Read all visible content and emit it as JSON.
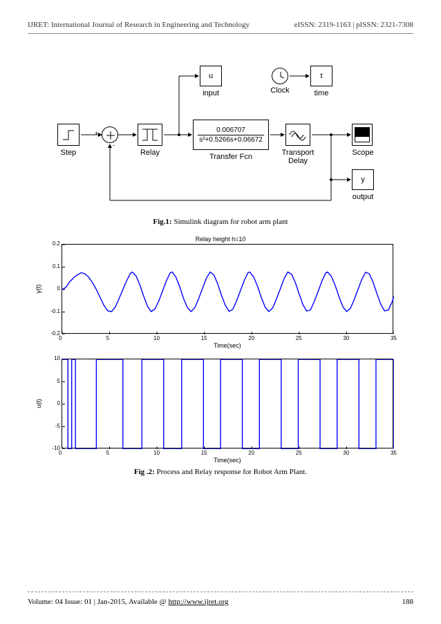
{
  "header": {
    "journal": "IJRET: International Journal of Research in Engineering and Technology",
    "issn": "eISSN: 2319-1163 | pISSN: 2321-7308"
  },
  "simulink": {
    "blocks": {
      "step": "Step",
      "relay": "Relay",
      "input_u": "u",
      "input_label": "input",
      "transfer_num": "0.006707",
      "transfer_den": "s²+0.5266s+0.06672",
      "transfer_label": "Transfer Fcn",
      "clock_label": "Clock",
      "t": "t",
      "time_label": "time",
      "transport_label": "Transport\nDelay",
      "scope_label": "Scope",
      "y": "y",
      "output_label": "output",
      "sum_plus": "+",
      "sum_minus": "-"
    }
  },
  "fig1_caption_bold": "Fig.1:",
  "fig1_caption_text": " Simulink diagram for robot arm plant",
  "chart1": {
    "title": "Relay height h=10",
    "ylabel": "y(t)",
    "xlabel": "Time(sec)",
    "xlim": [
      0,
      35
    ],
    "ylim": [
      -0.2,
      0.2
    ],
    "xticks": [
      0,
      5,
      10,
      15,
      20,
      25,
      30,
      35
    ],
    "yticks": [
      -0.2,
      -0.1,
      0,
      0.1,
      0.2
    ],
    "line_color": "#0000ff",
    "line_width": 1.4,
    "series": [
      [
        0,
        0
      ],
      [
        0.4,
        0.01
      ],
      [
        0.8,
        0.035
      ],
      [
        1.4,
        0.06
      ],
      [
        2.0,
        0.075
      ],
      [
        2.4,
        0.07
      ],
      [
        2.8,
        0.055
      ],
      [
        3.2,
        0.03
      ],
      [
        3.6,
        0
      ],
      [
        4.0,
        -0.035
      ],
      [
        4.4,
        -0.07
      ],
      [
        4.8,
        -0.095
      ],
      [
        5.2,
        -0.098
      ],
      [
        5.6,
        -0.078
      ],
      [
        6.0,
        -0.04
      ],
      [
        6.4,
        0
      ],
      [
        6.8,
        0.04
      ],
      [
        7.2,
        0.072
      ],
      [
        7.4,
        0.078
      ],
      [
        7.8,
        0.06
      ],
      [
        8.2,
        0.02
      ],
      [
        8.6,
        -0.03
      ],
      [
        9.0,
        -0.075
      ],
      [
        9.4,
        -0.098
      ],
      [
        9.8,
        -0.085
      ],
      [
        10.2,
        -0.05
      ],
      [
        10.6,
        -0.005
      ],
      [
        11.0,
        0.04
      ],
      [
        11.4,
        0.075
      ],
      [
        11.6,
        0.078
      ],
      [
        12.0,
        0.055
      ],
      [
        12.4,
        0.012
      ],
      [
        12.8,
        -0.04
      ],
      [
        13.2,
        -0.08
      ],
      [
        13.6,
        -0.098
      ],
      [
        14.0,
        -0.08
      ],
      [
        14.4,
        -0.04
      ],
      [
        14.8,
        0.005
      ],
      [
        15.2,
        0.05
      ],
      [
        15.6,
        0.078
      ],
      [
        16.0,
        0.065
      ],
      [
        16.4,
        0.025
      ],
      [
        16.8,
        -0.025
      ],
      [
        17.2,
        -0.07
      ],
      [
        17.6,
        -0.097
      ],
      [
        18.0,
        -0.088
      ],
      [
        18.4,
        -0.05
      ],
      [
        18.8,
        -0.005
      ],
      [
        19.2,
        0.04
      ],
      [
        19.6,
        0.075
      ],
      [
        19.8,
        0.078
      ],
      [
        20.2,
        0.055
      ],
      [
        20.6,
        0.015
      ],
      [
        21.0,
        -0.035
      ],
      [
        21.4,
        -0.078
      ],
      [
        21.8,
        -0.098
      ],
      [
        22.2,
        -0.082
      ],
      [
        22.6,
        -0.042
      ],
      [
        23.0,
        0.002
      ],
      [
        23.4,
        0.048
      ],
      [
        23.8,
        0.078
      ],
      [
        24.2,
        0.068
      ],
      [
        24.6,
        0.03
      ],
      [
        25.0,
        -0.02
      ],
      [
        25.4,
        -0.068
      ],
      [
        25.8,
        -0.096
      ],
      [
        26.2,
        -0.09
      ],
      [
        26.6,
        -0.052
      ],
      [
        27.0,
        -0.008
      ],
      [
        27.4,
        0.038
      ],
      [
        27.8,
        0.074
      ],
      [
        28.0,
        0.078
      ],
      [
        28.4,
        0.058
      ],
      [
        28.8,
        0.018
      ],
      [
        29.2,
        -0.032
      ],
      [
        29.6,
        -0.076
      ],
      [
        30.0,
        -0.098
      ],
      [
        30.4,
        -0.084
      ],
      [
        30.8,
        -0.045
      ],
      [
        31.2,
        0
      ],
      [
        31.6,
        0.045
      ],
      [
        32.0,
        0.077
      ],
      [
        32.4,
        0.07
      ],
      [
        32.8,
        0.032
      ],
      [
        33.2,
        -0.018
      ],
      [
        33.6,
        -0.065
      ],
      [
        34.0,
        -0.095
      ],
      [
        34.4,
        -0.092
      ],
      [
        34.8,
        -0.055
      ],
      [
        35.0,
        -0.03
      ]
    ]
  },
  "chart2": {
    "ylabel": "u(t)",
    "xlabel": "Time(sec)",
    "xlim": [
      0,
      35
    ],
    "ylim": [
      -10,
      10
    ],
    "xticks": [
      0,
      5,
      10,
      15,
      20,
      25,
      30,
      35
    ],
    "yticks": [
      -10,
      -5,
      0,
      5,
      10
    ],
    "line_color": "#0000ff",
    "line_width": 1.4,
    "switch_times": [
      0,
      0.6,
      1.0,
      1.4,
      3.6,
      6.4,
      8.4,
      10.7,
      12.6,
      14.9,
      16.7,
      19.0,
      20.8,
      23.1,
      24.9,
      27.2,
      29.0,
      31.3,
      33.1,
      35.0
    ],
    "start_level": 10
  },
  "fig2_caption_bold": "Fig .2:",
  "fig2_caption_text": " Process and Relay response for Robot Arm Plant.",
  "footer": {
    "volume": "Volume: 04 Issue: 01 | Jan-2015, Available @ ",
    "url": "http://www.ijret.org",
    "page": "188"
  }
}
